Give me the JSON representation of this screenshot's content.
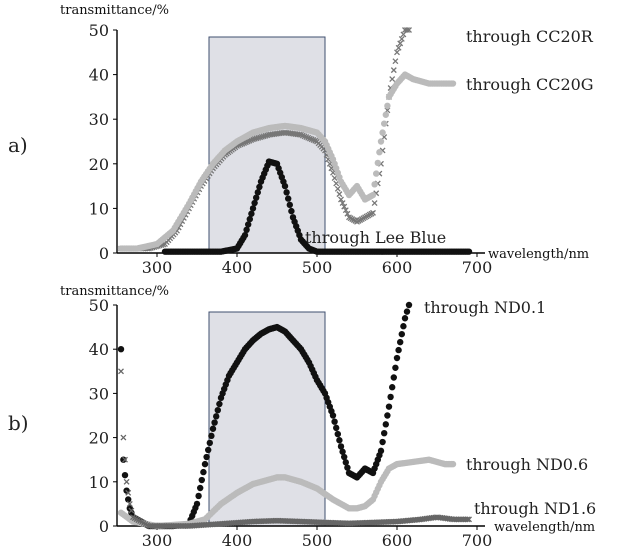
{
  "chart_data": [
    {
      "type": "scatter",
      "panel_label": "a)",
      "ylabel": "transmittance/%",
      "xlabel": "wavelength/nm",
      "xlim": [
        250,
        700
      ],
      "ylim": [
        0,
        50
      ],
      "x_ticks": [
        300,
        400,
        500,
        600,
        700
      ],
      "y_ticks": [
        0,
        10,
        20,
        30,
        40,
        50
      ],
      "x_tick_labels": [
        "300",
        "400",
        "500",
        "600",
        "700"
      ],
      "y_tick_labels": [
        "0",
        "10",
        "20",
        "30",
        "40",
        "50"
      ],
      "highlight_band": [
        365,
        510
      ],
      "series": [
        {
          "name": "through CC20R",
          "color": "#777777",
          "marker": "x",
          "points": [
            [
              255,
              1
            ],
            [
              270,
              1
            ],
            [
              290,
              1
            ],
            [
              310,
              2
            ],
            [
              325,
              5
            ],
            [
              340,
              10
            ],
            [
              355,
              15
            ],
            [
              370,
              19
            ],
            [
              385,
              22
            ],
            [
              400,
              24
            ],
            [
              420,
              25.5
            ],
            [
              440,
              26.5
            ],
            [
              460,
              27
            ],
            [
              480,
              26.5
            ],
            [
              500,
              25
            ],
            [
              510,
              23
            ],
            [
              520,
              18
            ],
            [
              530,
              12
            ],
            [
              540,
              8
            ],
            [
              550,
              7
            ],
            [
              560,
              8
            ],
            [
              570,
              9
            ],
            [
              580,
              20
            ],
            [
              590,
              35
            ],
            [
              600,
              45
            ],
            [
              610,
              50
            ],
            [
              615,
              50
            ]
          ]
        },
        {
          "name": "through CC20G",
          "color": "#bbbbbb",
          "marker": "o",
          "points": [
            [
              255,
              1
            ],
            [
              275,
              1
            ],
            [
              300,
              2
            ],
            [
              320,
              5
            ],
            [
              340,
              11
            ],
            [
              355,
              16
            ],
            [
              370,
              20
            ],
            [
              385,
              23
            ],
            [
              400,
              25
            ],
            [
              420,
              27
            ],
            [
              440,
              28
            ],
            [
              460,
              28.5
            ],
            [
              480,
              28
            ],
            [
              500,
              27
            ],
            [
              510,
              25
            ],
            [
              520,
              21
            ],
            [
              530,
              16
            ],
            [
              540,
              13
            ],
            [
              550,
              15
            ],
            [
              560,
              12
            ],
            [
              570,
              13
            ],
            [
              580,
              25
            ],
            [
              590,
              35
            ],
            [
              600,
              38
            ],
            [
              610,
              40
            ],
            [
              620,
              39
            ],
            [
              640,
              38
            ],
            [
              660,
              38
            ],
            [
              670,
              38
            ]
          ]
        },
        {
          "name": "through Lee Blue",
          "color": "#111111",
          "marker": "o",
          "points": [
            [
              310,
              0.3
            ],
            [
              340,
              0.3
            ],
            [
              380,
              0.3
            ],
            [
              400,
              1
            ],
            [
              410,
              4
            ],
            [
              420,
              10
            ],
            [
              430,
              16
            ],
            [
              440,
              20.5
            ],
            [
              450,
              20
            ],
            [
              460,
              15
            ],
            [
              470,
              8
            ],
            [
              480,
              3
            ],
            [
              490,
              1
            ],
            [
              500,
              0.3
            ],
            [
              550,
              0.3
            ],
            [
              600,
              0.3
            ],
            [
              650,
              0.3
            ],
            [
              690,
              0.3
            ]
          ]
        }
      ]
    },
    {
      "type": "scatter",
      "panel_label": "b)",
      "ylabel": "transmittance/%",
      "xlabel": "wavelength/nm",
      "xlim": [
        250,
        700
      ],
      "ylim": [
        0,
        50
      ],
      "x_ticks": [
        300,
        400,
        500,
        600,
        700
      ],
      "y_ticks": [
        0,
        10,
        20,
        30,
        40,
        50
      ],
      "x_tick_labels": [
        "300",
        "400",
        "500",
        "600",
        "700"
      ],
      "y_tick_labels": [
        "0",
        "10",
        "20",
        "30",
        "40",
        "50"
      ],
      "highlight_band": [
        365,
        510
      ],
      "series": [
        {
          "name": "through ND0.1",
          "color": "#111111",
          "marker": "o",
          "points": [
            [
              255,
              40
            ],
            [
              258,
              15
            ],
            [
              262,
              8
            ],
            [
              266,
              4
            ],
            [
              270,
              2
            ],
            [
              290,
              0
            ],
            [
              320,
              0
            ],
            [
              340,
              0.5
            ],
            [
              350,
              5
            ],
            [
              360,
              14
            ],
            [
              370,
              22
            ],
            [
              380,
              29
            ],
            [
              390,
              34
            ],
            [
              400,
              37
            ],
            [
              410,
              40
            ],
            [
              420,
              42
            ],
            [
              430,
              43.5
            ],
            [
              440,
              44.5
            ],
            [
              450,
              45
            ],
            [
              460,
              44
            ],
            [
              470,
              42
            ],
            [
              480,
              40
            ],
            [
              490,
              37
            ],
            [
              500,
              33
            ],
            [
              510,
              30
            ],
            [
              520,
              25
            ],
            [
              530,
              18
            ],
            [
              540,
              12
            ],
            [
              550,
              11
            ],
            [
              560,
              13
            ],
            [
              570,
              12
            ],
            [
              580,
              17
            ],
            [
              590,
              27
            ],
            [
              600,
              38
            ],
            [
              610,
              47
            ],
            [
              615,
              50
            ]
          ]
        },
        {
          "name": "through ND0.6",
          "color": "#bbbbbb",
          "marker": "o",
          "points": [
            [
              255,
              3
            ],
            [
              270,
              1
            ],
            [
              300,
              0
            ],
            [
              340,
              0.5
            ],
            [
              360,
              1.5
            ],
            [
              380,
              5
            ],
            [
              400,
              7.5
            ],
            [
              420,
              9.5
            ],
            [
              440,
              10.5
            ],
            [
              450,
              11
            ],
            [
              460,
              11
            ],
            [
              480,
              10
            ],
            [
              500,
              8.5
            ],
            [
              520,
              6
            ],
            [
              540,
              4
            ],
            [
              550,
              4
            ],
            [
              560,
              4.5
            ],
            [
              570,
              6
            ],
            [
              580,
              10
            ],
            [
              590,
              13
            ],
            [
              600,
              14
            ],
            [
              620,
              14.5
            ],
            [
              640,
              15
            ],
            [
              660,
              14
            ],
            [
              670,
              14
            ]
          ]
        },
        {
          "name": "through ND1.6",
          "color": "#666666",
          "marker": "x",
          "points": [
            [
              255,
              35
            ],
            [
              258,
              20
            ],
            [
              262,
              10
            ],
            [
              266,
              5
            ],
            [
              270,
              2
            ],
            [
              290,
              0
            ],
            [
              340,
              0
            ],
            [
              380,
              0.5
            ],
            [
              420,
              1
            ],
            [
              450,
              1.2
            ],
            [
              480,
              1
            ],
            [
              510,
              0.8
            ],
            [
              540,
              0.6
            ],
            [
              570,
              0.8
            ],
            [
              600,
              1
            ],
            [
              630,
              1.5
            ],
            [
              650,
              2
            ],
            [
              670,
              1.5
            ],
            [
              690,
              1.5
            ]
          ]
        }
      ]
    }
  ]
}
